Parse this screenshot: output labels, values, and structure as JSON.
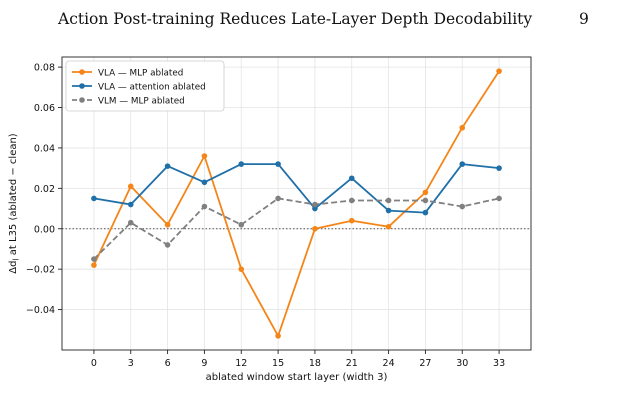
{
  "running_head": {
    "title": "Action Post-training Reduces Late-Layer Depth Decodability",
    "page_number": "9"
  },
  "chart_data": {
    "type": "line",
    "x": [
      0,
      3,
      6,
      9,
      12,
      15,
      18,
      21,
      24,
      27,
      30,
      33
    ],
    "xlabel": "ablated window start layer (width 3)",
    "ylabel": "Δd_l at L35  (ablated − clean)",
    "ylim": [
      -0.06,
      0.085
    ],
    "yticks": [
      "−0.04",
      "−0.02",
      "0.00",
      "0.02",
      "0.04",
      "0.06",
      "0.08"
    ],
    "ytick_values": [
      -0.04,
      -0.02,
      0.0,
      0.02,
      0.04,
      0.06,
      0.08
    ],
    "xticks": [
      "0",
      "3",
      "6",
      "9",
      "12",
      "15",
      "18",
      "21",
      "24",
      "27",
      "30",
      "33"
    ],
    "grid": true,
    "legend_position": "top-left",
    "reference_line": 0.0,
    "series": [
      {
        "name": "VLA — MLP ablated",
        "color": "#f58518",
        "style": "solid",
        "values": [
          -0.018,
          0.021,
          0.002,
          0.036,
          -0.02,
          -0.053,
          0.0,
          0.004,
          0.001,
          0.018,
          0.05,
          0.078
        ]
      },
      {
        "name": "VLA — attention ablated",
        "color": "#1f6fa8",
        "style": "solid",
        "values": [
          0.015,
          0.012,
          0.031,
          0.023,
          0.032,
          0.032,
          0.01,
          0.025,
          0.009,
          0.008,
          0.032,
          0.03
        ]
      },
      {
        "name": "VLM — MLP ablated",
        "color": "#808080",
        "style": "dashed",
        "values": [
          -0.015,
          0.003,
          -0.008,
          0.011,
          0.002,
          0.015,
          0.012,
          0.014,
          0.014,
          0.014,
          0.011,
          0.015
        ]
      }
    ]
  }
}
